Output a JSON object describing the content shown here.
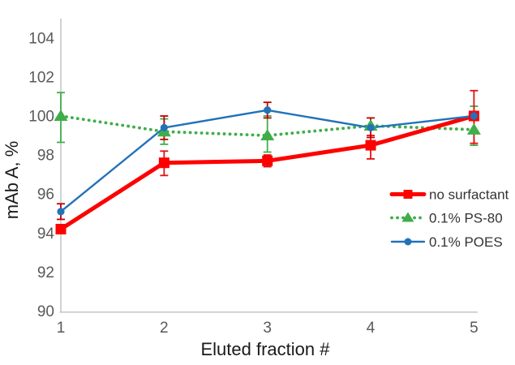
{
  "chart_data": {
    "type": "line",
    "title": "",
    "xlabel": "Eluted fraction #",
    "ylabel": "mAb A, %",
    "x": [
      1,
      2,
      3,
      4,
      5
    ],
    "xticks": [
      "1",
      "2",
      "3",
      "4",
      "5"
    ],
    "yticks": [
      "90",
      "92",
      "94",
      "96",
      "98",
      "100",
      "102",
      "104"
    ],
    "ytick_values": [
      90,
      92,
      94,
      96,
      98,
      100,
      102,
      104
    ],
    "xlim": [
      1,
      5
    ],
    "ylim": [
      90,
      105
    ],
    "grid": false,
    "legend_position": "inside-right",
    "axis_color": "#bfbfbf",
    "tick_label_color": "#595959",
    "title_color": "#1a1a1a",
    "legend_text_color": "#333333",
    "draw_order": [
      1,
      0,
      2
    ],
    "series": [
      {
        "name": "no surfactant",
        "color": "#ff0000",
        "error_color": "#e01010",
        "marker": "square",
        "line_style": "solid",
        "line_width": 5,
        "values": [
          94.2,
          97.6,
          97.7,
          98.5,
          100.0
        ],
        "err_plus": [
          0,
          0.6,
          0.3,
          0.5,
          1.3
        ],
        "err_minus": [
          0,
          0.65,
          0.3,
          0.7,
          1.4
        ]
      },
      {
        "name": "0.1% PS-80",
        "color": "#3fae49",
        "error_color": "#3fae49",
        "marker": "triangle",
        "line_style": "dotted",
        "line_width": 3.8,
        "values": [
          100.0,
          99.2,
          99.0,
          99.5,
          99.3
        ],
        "err_plus": [
          1.2,
          0.65,
          1.0,
          0,
          1.2
        ],
        "err_minus": [
          1.35,
          0.65,
          0.85,
          0,
          0.8
        ]
      },
      {
        "name": "0.1% POES",
        "color": "#2272b8",
        "error_color": "#c00000",
        "marker": "circle",
        "line_style": "solid",
        "line_width": 2.4,
        "values": [
          95.1,
          99.4,
          100.3,
          99.4,
          100.0
        ],
        "err_plus": [
          0.4,
          0.6,
          0.4,
          0.5,
          0
        ],
        "err_minus": [
          0.4,
          0.6,
          0.4,
          0.5,
          0
        ]
      }
    ]
  }
}
